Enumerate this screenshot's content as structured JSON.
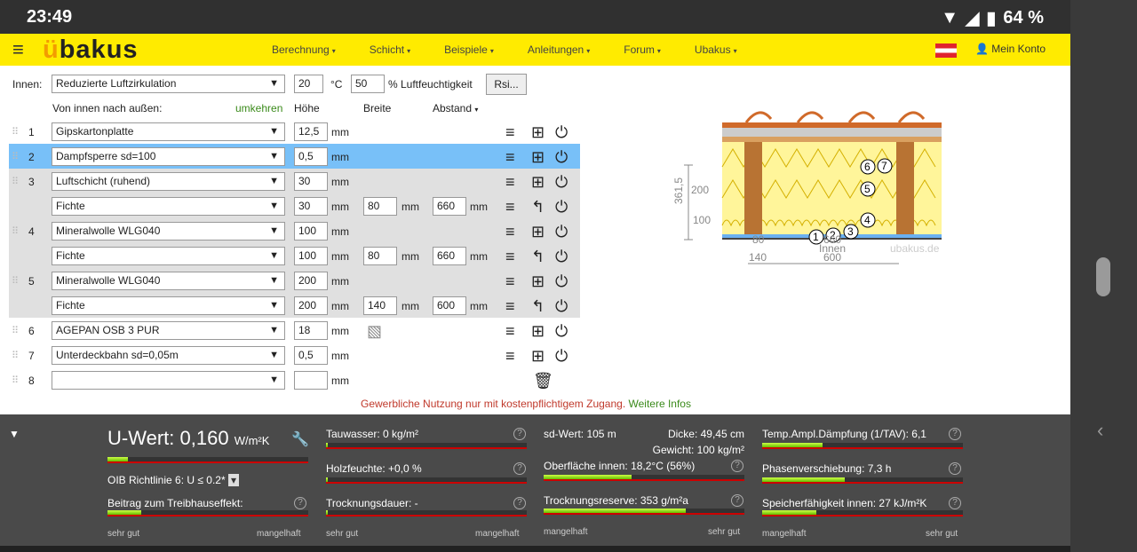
{
  "status": {
    "time": "23:49",
    "battery": "64 %"
  },
  "nav": {
    "logo_prefix": "ü",
    "logo_rest": "bakus",
    "menu": [
      "Berechnung",
      "Schicht",
      "Beispiele",
      "Anleitungen",
      "Forum",
      "Ubakus"
    ],
    "account": "Mein Konto"
  },
  "inside": {
    "label": "Innen:",
    "climate": "Reduzierte Luftzirkulation",
    "temp": "20",
    "temp_unit": "°C",
    "humidity": "50",
    "humidity_label": "% Luftfeuchtigkeit",
    "rsi": "Rsi..."
  },
  "header": {
    "direction": "Von innen nach außen:",
    "reverse": "umkehren",
    "height": "Höhe",
    "width": "Breite",
    "spacing": "Abstand"
  },
  "layers": [
    {
      "n": "1",
      "name": "Gipskartonplatte",
      "h": "12,5"
    },
    {
      "n": "2",
      "name": "Dampfsperre sd=100",
      "h": "0,5"
    },
    {
      "n": "3",
      "name": "Luftschicht (ruhend)",
      "h": "30"
    },
    {
      "n": "",
      "name": "Fichte",
      "h": "30",
      "w": "80",
      "a": "660"
    },
    {
      "n": "4",
      "name": "Mineralwolle WLG040",
      "h": "100"
    },
    {
      "n": "",
      "name": "Fichte",
      "h": "100",
      "w": "80",
      "a": "660"
    },
    {
      "n": "5",
      "name": "Mineralwolle WLG040",
      "h": "200"
    },
    {
      "n": "",
      "name": "Fichte",
      "h": "200",
      "w": "140",
      "a": "600"
    },
    {
      "n": "6",
      "name": "AGEPAN OSB 3 PUR",
      "h": "18"
    },
    {
      "n": "7",
      "name": "Unterdeckbahn sd=0,05m",
      "h": "0,5"
    },
    {
      "n": "8",
      "name": "",
      "h": ""
    }
  ],
  "units": {
    "mm": "mm"
  },
  "notice": {
    "text": "Gewerbliche Nutzung nur mit kostenpflichtigem Zugang.",
    "link": "Weitere Infos"
  },
  "diagram": {
    "dim_total": "361,5",
    "dim_a": "200",
    "dim_b": "100",
    "inside": "Innen",
    "brand": "ubakus.de",
    "w1": "80",
    "w2": "660",
    "w3": "140",
    "w4": "600",
    "markers": [
      "1",
      "2",
      "3",
      "4",
      "5",
      "6",
      "7"
    ]
  },
  "results": {
    "uwert_label": "U-Wert:",
    "uwert_value": "0,160",
    "uwert_unit": "W/m²K",
    "uwert_fill": 0.1,
    "oib": "OIB Richtlinie 6: U ≤ 0.2*",
    "treibhaus": "Beitrag zum Treibhauseffekt:",
    "treibhaus_fill": 0.17,
    "tauwasser": "Tauwasser: 0 kg/m²",
    "tauwasser_fill": 0.01,
    "holzfeuchte": "Holzfeuchte: +0,0 %",
    "holzfeuchte_fill": 0.01,
    "trocknung": "Trocknungsdauer: -",
    "trocknung_fill": 0.01,
    "sdwert": "sd-Wert: 105 m",
    "dicke": "Dicke: 49,45 cm",
    "gewicht": "Gewicht: 100 kg/m²",
    "oberflaeche": "Oberfläche innen: 18,2°C (56%)",
    "oberflaeche_fill": 0.44,
    "reserve": "Trocknungsreserve: 353 g/m²a",
    "reserve_fill": 0.71,
    "tav": "Temp.Ampl.Dämpfung (1/TAV): 6,1",
    "tav_fill": 0.3,
    "phase": "Phasenverschiebung: 7,3 h",
    "phase_fill": 0.41,
    "speicher": "Speicherfähigkeit innen: 27 kJ/m²K",
    "speicher_fill": 0.27,
    "sehr_gut": "sehr gut",
    "mangelhaft": "mangelhaft",
    "q": "?"
  }
}
